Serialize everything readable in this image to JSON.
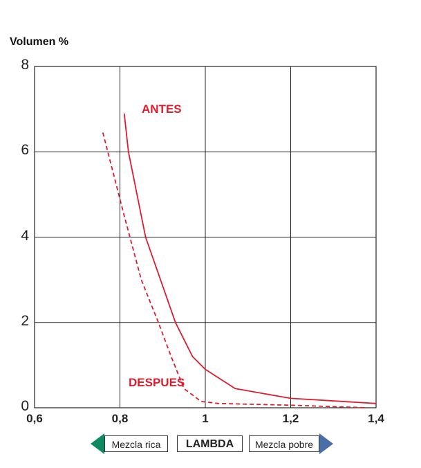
{
  "chart_data": {
    "type": "line",
    "ylabel": "Volumen %",
    "xlabel": "LAMBDA",
    "xlim": [
      0.6,
      1.4
    ],
    "ylim": [
      0,
      8
    ],
    "x_ticks": [
      0.6,
      0.8,
      1.0,
      1.2,
      1.4
    ],
    "x_tick_labels": [
      "0,6",
      "0,8",
      "1",
      "1,2",
      "1,4"
    ],
    "y_ticks": [
      0,
      2,
      4,
      6,
      8
    ],
    "y_tick_labels": [
      "0",
      "2",
      "4",
      "6",
      "8"
    ],
    "grid": true,
    "series": [
      {
        "name": "ANTES",
        "style": "solid",
        "color": "#e01b2d",
        "x": [
          0.81,
          0.82,
          0.86,
          0.93,
          0.97,
          1.0,
          1.07,
          1.2,
          1.4
        ],
        "y": [
          6.9,
          6.0,
          4.0,
          2.0,
          1.2,
          0.9,
          0.45,
          0.22,
          0.1
        ]
      },
      {
        "name": "DESPUES",
        "style": "dashed",
        "color": "#e01b2d",
        "x": [
          0.76,
          0.81,
          0.85,
          0.89,
          0.92,
          0.95,
          0.99,
          1.03,
          1.2,
          1.38
        ],
        "y": [
          6.45,
          4.5,
          3.0,
          2.0,
          1.2,
          0.45,
          0.15,
          0.1,
          0.06,
          0.0
        ]
      }
    ]
  },
  "legend": {
    "left_label": "Mezcla rica",
    "center_label": "LAMBDA",
    "right_label": "Mezcla pobre",
    "left_arrow_color": "#0f8a5f",
    "right_arrow_color": "#4a6ea8"
  }
}
